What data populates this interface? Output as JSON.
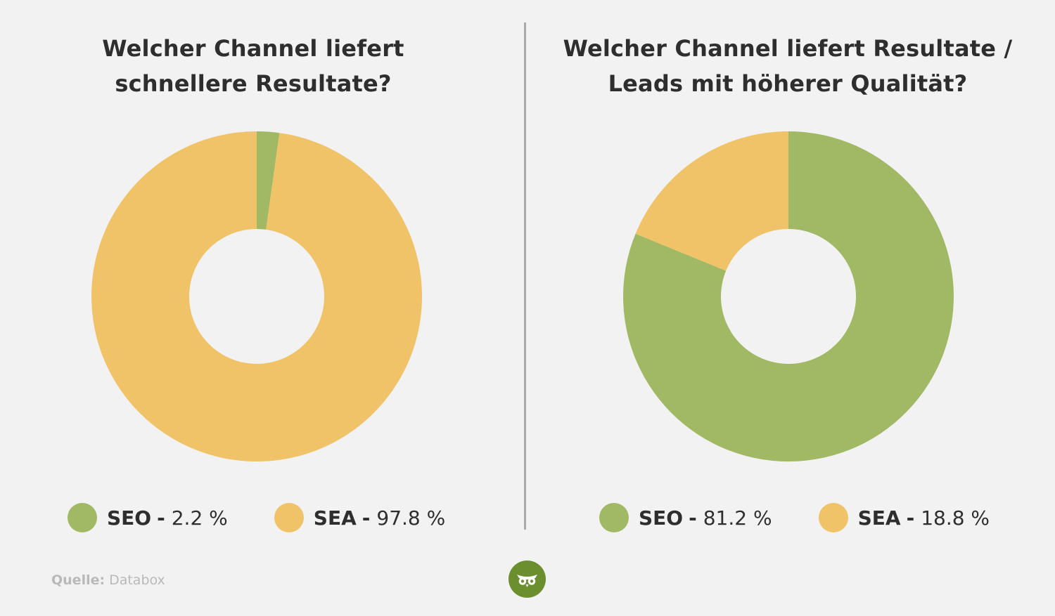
{
  "colors": {
    "seo": "#a1b864",
    "sea": "#f1c369",
    "background": "#f2f2f2",
    "logo": "#6b8e2e"
  },
  "chart_data": [
    {
      "type": "pie",
      "title": "Welcher Channel liefert\nschnellere Resultate?",
      "categories": [
        "SEO",
        "SEA"
      ],
      "values": [
        2.2,
        97.8
      ],
      "unit": "%",
      "legend": [
        {
          "name": "SEO",
          "sep": "-",
          "value_text": "2.2 %"
        },
        {
          "name": "SEA",
          "sep": "-",
          "value_text": "97.8 %"
        }
      ]
    },
    {
      "type": "pie",
      "title": "Welcher Channel liefert Resultate /\nLeads mit höherer Qualität?",
      "categories": [
        "SEO",
        "SEA"
      ],
      "values": [
        81.2,
        18.8
      ],
      "unit": "%",
      "legend": [
        {
          "name": "SEO",
          "sep": "-",
          "value_text": "81.2 %"
        },
        {
          "name": "SEA",
          "sep": "-",
          "value_text": "18.8 %"
        }
      ]
    }
  ],
  "source": {
    "label": "Quelle:",
    "value": "Databox"
  },
  "logo": {
    "icon": "owl-logo-icon"
  }
}
